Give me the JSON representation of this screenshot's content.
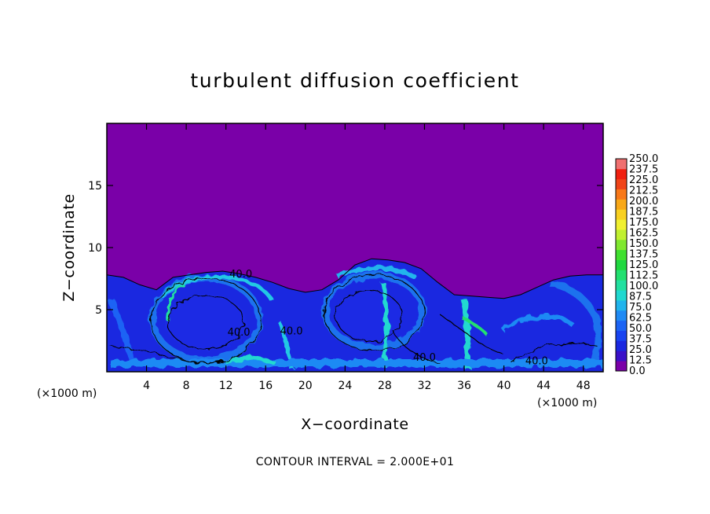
{
  "chart_data": {
    "type": "heatmap",
    "title": "turbulent diffusion coefficient",
    "xlabel": "X−coordinate",
    "ylabel": "Z−coordinate",
    "x_unit": "(×1000 m)",
    "x_unit_right": "(×1000 m)",
    "xlim": [
      0,
      50
    ],
    "ylim": [
      0,
      20
    ],
    "x_ticks": [
      4,
      8,
      12,
      16,
      20,
      24,
      28,
      32,
      36,
      40,
      44,
      48
    ],
    "y_ticks": [
      5,
      10,
      15
    ],
    "contour_interval": "CONTOUR INTERVAL = 2.000E+01",
    "colorbar": {
      "min": 0.0,
      "max": 250.0,
      "step": 12.5,
      "labels": [
        "0.0",
        "12.5",
        "25.0",
        "37.5",
        "50.0",
        "62.5",
        "75.0",
        "87.5",
        "100.0",
        "112.5",
        "125.0",
        "137.5",
        "150.0",
        "162.5",
        "175.0",
        "187.5",
        "200.0",
        "212.5",
        "225.0",
        "237.5",
        "250.0"
      ],
      "colors": [
        "#7a00a8",
        "#3a10c8",
        "#1a28e0",
        "#1844f0",
        "#1c64f4",
        "#1f8af4",
        "#20b4ec",
        "#20d8d0",
        "#22e0a0",
        "#22e070",
        "#20d840",
        "#40e030",
        "#80e830",
        "#c0f030",
        "#f0f030",
        "#f8d020",
        "#f8a818",
        "#f87818",
        "#f04418",
        "#f02010",
        "#f07070"
      ]
    },
    "background_value": 0.0,
    "mixed_layer_top_z": [
      7.8,
      7.6,
      7.0,
      6.6,
      7.6,
      7.8,
      8.0,
      8.1,
      7.9,
      7.6,
      7.2,
      6.7,
      6.4,
      6.6,
      7.4,
      8.6,
      9.1,
      9.0,
      8.8,
      8.3,
      7.2,
      6.2,
      6.1,
      6.0,
      5.9,
      6.2,
      6.8,
      7.4,
      7.7,
      7.8,
      7.8
    ],
    "contour_labels": [
      {
        "text": "40.0",
        "x": 13.5,
        "z": 7.6
      },
      {
        "text": "40.0",
        "x": 13.3,
        "z": 2.9
      },
      {
        "text": "40.0",
        "x": 18.6,
        "z": 3.0
      },
      {
        "text": "40.0",
        "x": 32.0,
        "z": 0.9
      },
      {
        "text": "40.0",
        "x": 43.3,
        "z": 0.6
      }
    ]
  }
}
